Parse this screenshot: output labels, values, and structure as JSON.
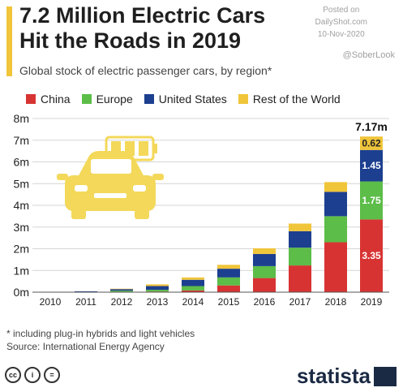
{
  "header": {
    "title_line1": "7.2 Million Electric Cars",
    "title_line2": "Hit the Roads in 2019",
    "subtitle": "Global stock of electric passenger cars, by region*",
    "posted_line1": "Posted on",
    "posted_line2": "DailyShot.com",
    "posted_line3": "10-Nov-2020",
    "sober": "@SoberLook"
  },
  "footer": {
    "note": "* including plug-in hybrids and light vehicles",
    "source": "Source: International Energy Agency",
    "brand": "statista",
    "cc_labels": [
      "cc",
      "i",
      "="
    ]
  },
  "colors": {
    "china": "#d83333",
    "europe": "#5cbd48",
    "us": "#1c3f8f",
    "rest": "#f0c53a",
    "icon": "#f3d85a"
  },
  "icons": [
    "car-icon",
    "battery-icon"
  ],
  "chart_data": {
    "type": "bar",
    "stacked": true,
    "categories": [
      "2010",
      "2011",
      "2012",
      "2013",
      "2014",
      "2015",
      "2016",
      "2017",
      "2018",
      "2019"
    ],
    "series": [
      {
        "name": "China",
        "values": [
          0.0,
          0.01,
          0.02,
          0.03,
          0.08,
          0.31,
          0.65,
          1.23,
          2.3,
          3.35
        ]
      },
      {
        "name": "Europe",
        "values": [
          0.0,
          0.01,
          0.05,
          0.08,
          0.2,
          0.37,
          0.55,
          0.82,
          1.2,
          1.75
        ]
      },
      {
        "name": "United States",
        "values": [
          0.0,
          0.02,
          0.07,
          0.17,
          0.29,
          0.4,
          0.56,
          0.76,
          1.12,
          1.45
        ]
      },
      {
        "name": "Rest of the World",
        "values": [
          0.0,
          0.0,
          0.02,
          0.08,
          0.11,
          0.18,
          0.26,
          0.35,
          0.45,
          0.62
        ]
      }
    ],
    "data_labels": {
      "2019": [
        "3.35",
        "1.75",
        "1.45",
        "0.62"
      ]
    },
    "total_label": "7.17m",
    "yticks": [
      "0m",
      "1m",
      "2m",
      "3m",
      "4m",
      "5m",
      "6m",
      "7m",
      "8m"
    ],
    "ylim": [
      0,
      8
    ],
    "grid": true,
    "legend": "top"
  }
}
